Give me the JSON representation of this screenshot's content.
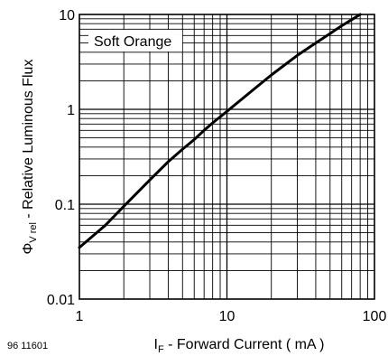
{
  "chart_data": {
    "type": "line",
    "legend_label": "Soft Orange",
    "figure_id": "96 11601",
    "xlabel": {
      "symbol": "I",
      "subscript": "F",
      "text": " - Forward Current ( mA )"
    },
    "ylabel": {
      "symbol": "Φ",
      "subscript": "V rel",
      "text": " - Relative Luminous Flux"
    },
    "x_scale": "log",
    "y_scale": "log",
    "xlim": [
      1,
      100
    ],
    "ylim": [
      0.01,
      10
    ],
    "x_ticks": [
      "1",
      "10",
      "100"
    ],
    "y_ticks": [
      "0.01",
      "0.1",
      "1",
      "10"
    ],
    "grid": true,
    "series": [
      {
        "x": [
          1,
          1.5,
          2,
          3,
          4,
          5,
          6,
          7,
          8,
          10,
          15,
          20,
          30,
          40,
          50,
          60,
          70,
          80
        ],
        "y": [
          0.035,
          0.06,
          0.095,
          0.18,
          0.28,
          0.38,
          0.48,
          0.6,
          0.72,
          0.95,
          1.6,
          2.3,
          3.7,
          5.0,
          6.3,
          7.6,
          8.8,
          10.0
        ]
      }
    ]
  }
}
